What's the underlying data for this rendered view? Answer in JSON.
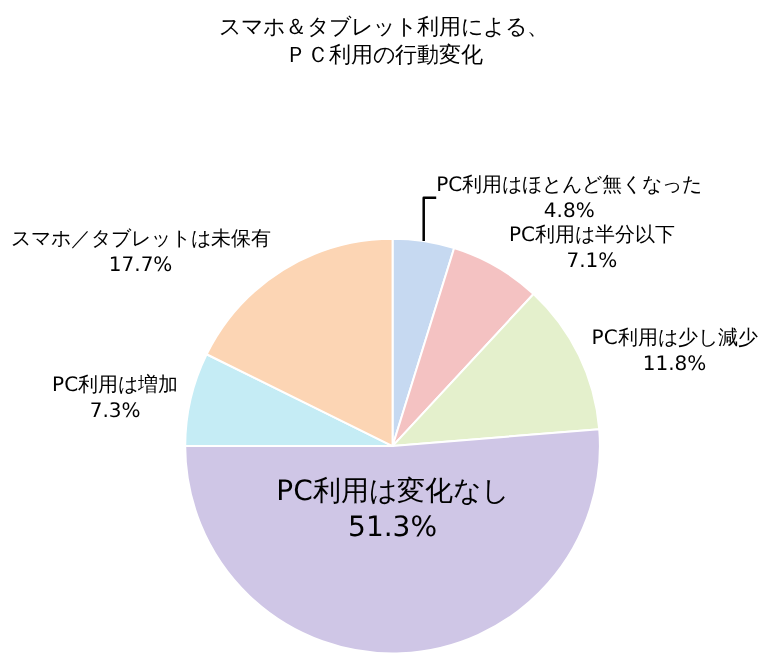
{
  "chart_data": {
    "type": "pie",
    "title": "スマホ＆タブレット利用による、",
    "subtitle": "ＰＣ利用の行動変化",
    "categories": [
      "PC利用はほとんど無くなった",
      "PC利用は半分以下",
      "PC利用は少し減少",
      "PC利用は変化なし",
      "PC利用は増加",
      "スマホ／タブレットは未保有"
    ],
    "values": [
      4.8,
      7.1,
      11.8,
      51.3,
      7.3,
      17.7
    ],
    "value_labels": [
      "4.8%",
      "7.1%",
      "11.8%",
      "51.3%",
      "7.3%",
      "17.7%"
    ],
    "colors": [
      "#c6d9f1",
      "#f4c2c2",
      "#e4f0cc",
      "#cfc6e6",
      "#c5ecf5",
      "#fcd5b4"
    ],
    "legend": false
  }
}
